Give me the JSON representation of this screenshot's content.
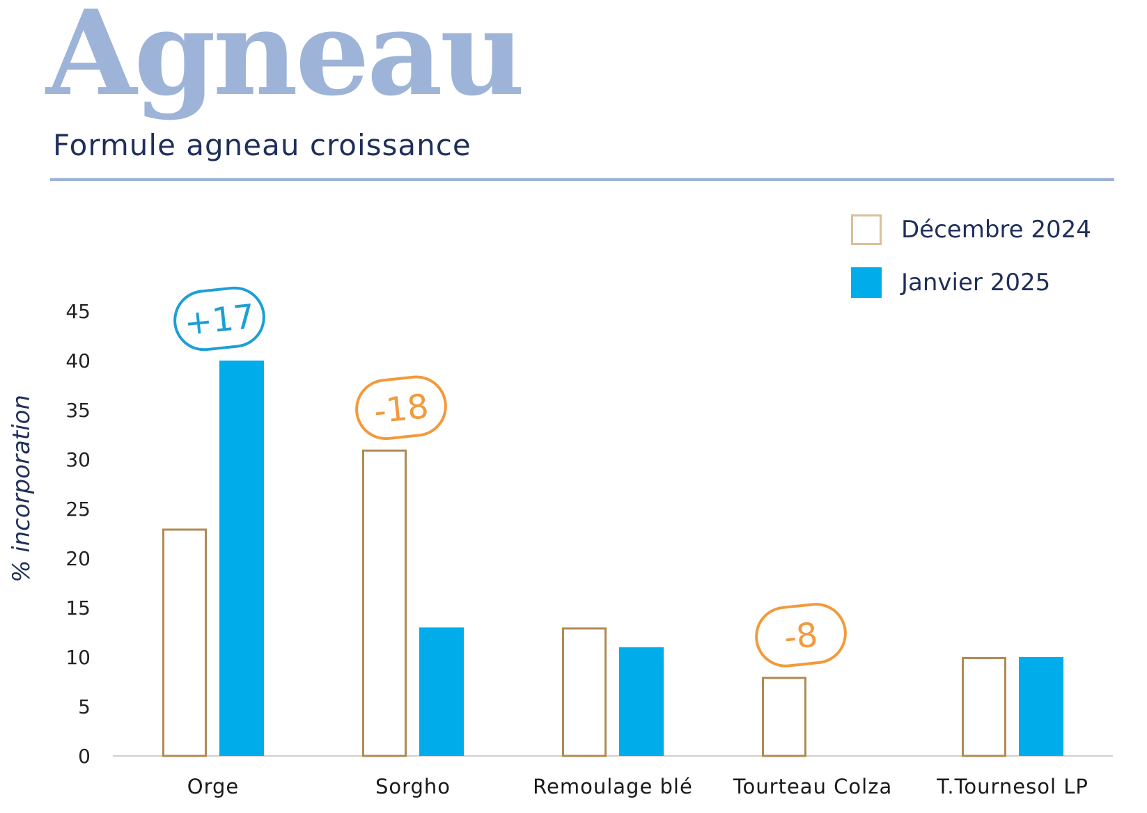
{
  "header": {
    "title": "Agneau",
    "subtitle": "Formule agneau croissance"
  },
  "colors": {
    "title": "#9db4d8",
    "subtitle": "#1f2f5a",
    "december_outline": "#b08a54",
    "legend_outline": "#d8c09a",
    "january_fill": "#00adea",
    "positive_badge": "#1d9fd6",
    "negative_badge": "#f29a3c",
    "axis": "#cfcfcf"
  },
  "chart_data": {
    "type": "bar",
    "ylabel": "% incorporation",
    "xlabel": "",
    "ylim": [
      0,
      45
    ],
    "yticks": [
      0,
      5,
      10,
      15,
      20,
      25,
      30,
      35,
      40,
      45
    ],
    "categories": [
      "Orge",
      "Sorgho",
      "Remoulage blé",
      "Tourteau Colza",
      "T.Tournesol LP"
    ],
    "series": [
      {
        "name": "Décembre 2024",
        "style": "outline",
        "values": [
          23,
          31,
          13,
          8,
          10
        ]
      },
      {
        "name": "Janvier 2025",
        "style": "fill",
        "values": [
          40,
          13,
          11,
          0,
          10
        ]
      }
    ],
    "annotations": [
      {
        "category": "Orge",
        "text": "+17",
        "sign": "positive"
      },
      {
        "category": "Sorgho",
        "text": "-18",
        "sign": "negative"
      },
      {
        "category": "Tourteau Colza",
        "text": "-8",
        "sign": "negative"
      }
    ],
    "legend_position": "top-right",
    "grid": false
  }
}
